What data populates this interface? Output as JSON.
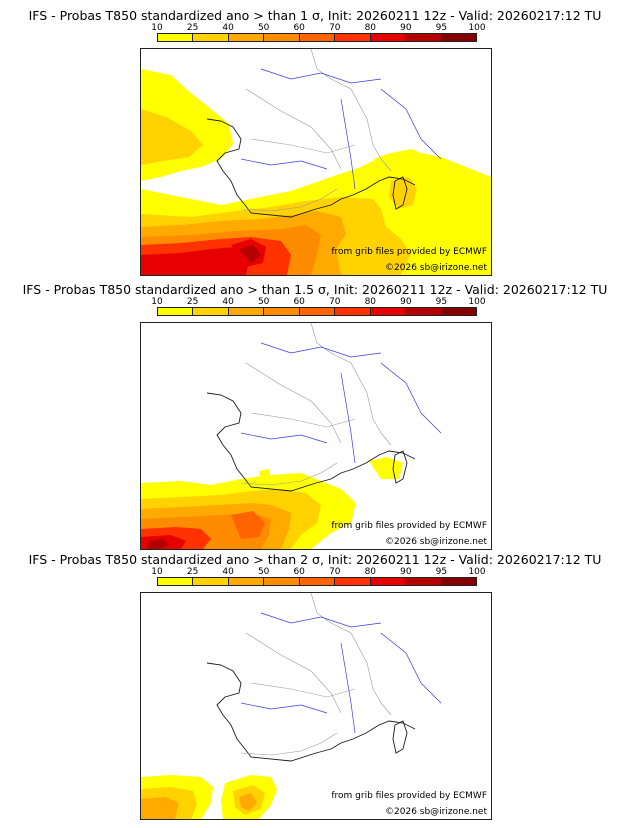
{
  "panels": [
    {
      "title": "IFS - Probas T850  standardized ano > than 1 σ, Init: 20260211 12z - Valid: 20260217:12 TU",
      "source_text": "from grib files provided by ECMWF",
      "copyright_text": "©2026 sb@irizone.net"
    },
    {
      "title": "IFS - Probas T850  standardized ano > than 1.5 σ, Init: 20260211 12z - Valid: 20260217:12 TU",
      "source_text": "from grib files provided by ECMWF",
      "copyright_text": "©2026 sb@irizone.net"
    },
    {
      "title": "IFS - Probas T850  standardized ano > than 2 σ, Init: 20260211 12z - Valid: 20260217:12 TU",
      "source_text": "from grib files provided by ECMWF",
      "copyright_text": "©2026 sb@irizone.net"
    }
  ],
  "scale": {
    "ticks": [
      "10",
      "25",
      "40",
      "50",
      "60",
      "70",
      "80",
      "90",
      "95",
      "100"
    ],
    "colors": [
      "#ffff00",
      "#ffd200",
      "#ffaa00",
      "#ff8c00",
      "#ff6400",
      "#ff3200",
      "#e60000",
      "#b40000",
      "#820000"
    ]
  },
  "palette": {
    "coast": "#1a1a1a",
    "rivers": "#3a3adf",
    "borders": "#9a9a9a"
  }
}
